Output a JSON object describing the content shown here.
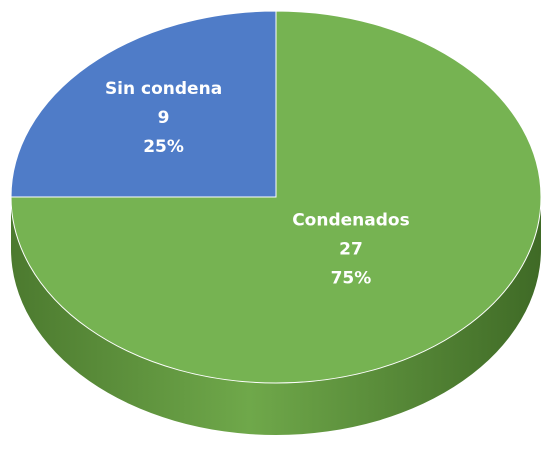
{
  "chart_data": {
    "type": "pie3d",
    "categories": [
      "Sin condena",
      "Condenados"
    ],
    "values": [
      9,
      27
    ],
    "percentages": [
      25,
      75
    ],
    "percentage_labels": [
      "25%",
      "75%"
    ],
    "colors": [
      "#4f7cc8",
      "#76b352"
    ]
  }
}
